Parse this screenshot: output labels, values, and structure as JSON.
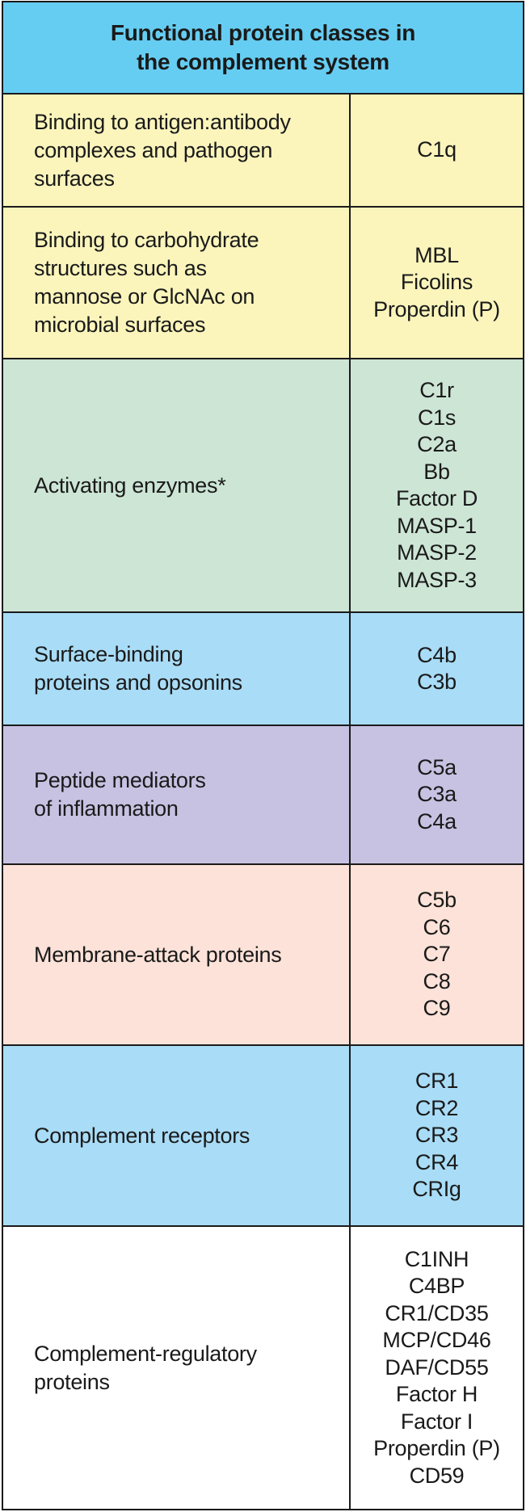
{
  "header": {
    "title": "Functional protein classes in\nthe complement system"
  },
  "rows": [
    {
      "function": "Binding to antigen:antibody\ncomplexes and pathogen\nsurfaces",
      "proteins": [
        "C1q"
      ],
      "color": "#fbf5bc"
    },
    {
      "function": "Binding to carbohydrate\nstructures such as\nmannose or GlcNAc on\nmicrobial surfaces",
      "proteins": [
        "MBL",
        "Ficolins",
        "Properdin (P)"
      ],
      "color": "#fbf5bc"
    },
    {
      "function": "Activating enzymes*",
      "proteins": [
        "C1r",
        "C1s",
        "C2a",
        "Bb",
        "Factor D",
        "MASP-1",
        "MASP-2",
        "MASP-3"
      ],
      "color": "#cde5d5"
    },
    {
      "function": "Surface-binding\nproteins and opsonins",
      "proteins": [
        "C4b",
        "C3b"
      ],
      "color": "#a9dcf6"
    },
    {
      "function": "Peptide mediators\nof inflammation",
      "proteins": [
        "C5a",
        "C3a",
        "C4a"
      ],
      "color": "#c7c2e2"
    },
    {
      "function": "Membrane-attack proteins",
      "proteins": [
        "C5b",
        "C6",
        "C7",
        "C8",
        "C9"
      ],
      "color": "#fce2d8"
    },
    {
      "function": "Complement receptors",
      "proteins": [
        "CR1",
        "CR2",
        "CR3",
        "CR4",
        "CRIg"
      ],
      "color": "#a9dcf6"
    },
    {
      "function": "Complement-regulatory\nproteins",
      "proteins": [
        "C1INH",
        "C4BP",
        "CR1/CD35",
        "MCP/CD46",
        "DAF/CD55",
        "Factor H",
        "Factor I",
        "Properdin (P)",
        "CD59"
      ],
      "color": "#ffffff"
    }
  ]
}
